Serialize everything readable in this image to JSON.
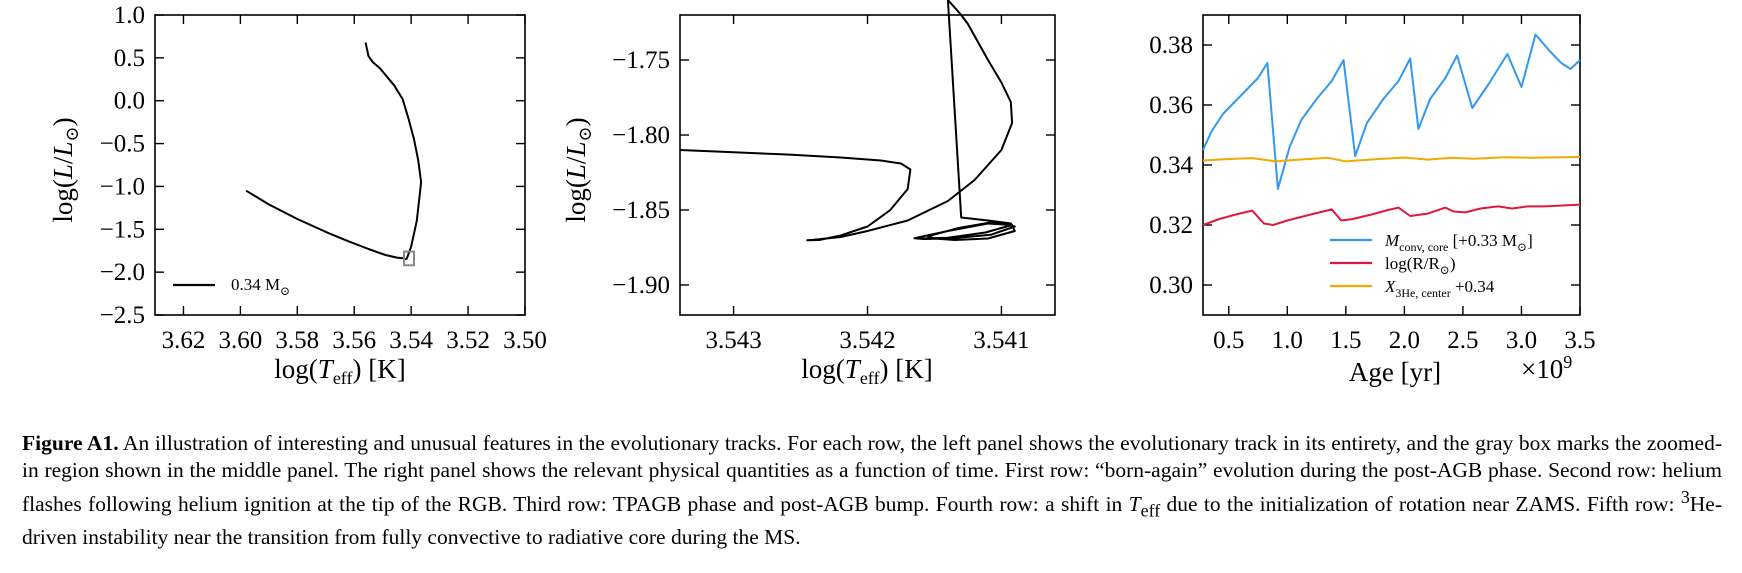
{
  "chart_data": [
    {
      "type": "line",
      "panel": "left",
      "xlabel": "log(Teff) [K]",
      "ylabel": "log(L/L⊙)",
      "xlim": [
        3.63,
        3.5
      ],
      "ylim": [
        -2.5,
        1.0
      ],
      "x_ticks": [
        3.62,
        3.6,
        3.58,
        3.56,
        3.54,
        3.52,
        3.5
      ],
      "y_ticks": [
        1.0,
        0.5,
        0.0,
        -0.5,
        -1.0,
        -1.5,
        -2.0,
        -2.5
      ],
      "x_tick_labels": [
        "3.62",
        "3.60",
        "3.58",
        "3.56",
        "3.54",
        "3.52",
        "3.50"
      ],
      "y_tick_labels": [
        "1.0",
        "0.5",
        "0.0",
        "−0.5",
        "−1.0",
        "−1.5",
        "−2.0",
        "−2.5"
      ],
      "series": [
        {
          "name": "0.34 M⊙",
          "color": "#000000",
          "x": [
            3.598,
            3.59,
            3.58,
            3.57,
            3.562,
            3.555,
            3.549,
            3.545,
            3.5425,
            3.542,
            3.5415,
            3.54,
            3.538,
            3.537,
            3.5365,
            3.5375,
            3.539,
            3.541,
            3.543,
            3.546,
            3.549,
            3.551,
            3.5535,
            3.555,
            3.5555,
            3.556
          ],
          "y": [
            -1.05,
            -1.21,
            -1.38,
            -1.53,
            -1.64,
            -1.73,
            -1.8,
            -1.83,
            -1.84,
            -1.85,
            -1.84,
            -1.7,
            -1.4,
            -1.1,
            -0.95,
            -0.7,
            -0.45,
            -0.2,
            0.02,
            0.18,
            0.3,
            0.38,
            0.45,
            0.52,
            0.6,
            0.68
          ]
        }
      ],
      "gray_box": {
        "x": [
          3.5425,
          3.539
        ],
        "y": [
          -1.92,
          -1.76
        ]
      },
      "legend": "lower-left"
    },
    {
      "type": "line",
      "panel": "middle",
      "xlabel": "log(Teff) [K]",
      "ylabel": "log(L/L⊙)",
      "xlim": [
        3.5434,
        3.5406
      ],
      "ylim": [
        -1.92,
        -1.72
      ],
      "x_ticks": [
        3.543,
        3.542,
        3.541
      ],
      "y_ticks": [
        -1.75,
        -1.8,
        -1.85,
        -1.9
      ],
      "x_tick_labels": [
        "3.543",
        "3.542",
        "3.541"
      ],
      "y_tick_labels": [
        "−1.75",
        "−1.80",
        "−1.85",
        "−1.90"
      ],
      "series": [
        {
          "name": "",
          "color": "#000000",
          "x": [
            3.5434,
            3.543,
            3.5426,
            3.5422,
            3.5419,
            3.54175,
            3.54168,
            3.5417,
            3.54183,
            3.542,
            3.5422,
            3.54236,
            3.54245,
            3.5424,
            3.5422,
            3.542,
            3.5417,
            3.5414,
            3.5412,
            3.541,
            3.54092,
            3.54093,
            3.541,
            3.5411,
            3.54115,
            3.5412,
            3.54125,
            3.5413,
            3.54135,
            3.5414,
            3.5413,
            3.5411,
            3.54093,
            3.5409,
            3.5411,
            3.54135,
            3.5415,
            3.54155,
            3.54132,
            3.54106,
            3.5409,
            3.54108,
            3.54138,
            3.54158,
            3.54165,
            3.5414,
            3.5411,
            3.54092,
            3.54112,
            3.5414,
            3.5416
          ],
          "y": [
            -1.81,
            -1.8115,
            -1.813,
            -1.815,
            -1.817,
            -1.819,
            -1.823,
            -1.836,
            -1.85,
            -1.861,
            -1.867,
            -1.87,
            -1.8702,
            -1.8699,
            -1.868,
            -1.864,
            -1.857,
            -1.844,
            -1.83,
            -1.81,
            -1.792,
            -1.778,
            -1.765,
            -1.75,
            -1.742,
            -1.734,
            -1.726,
            -1.72,
            -1.715,
            -1.71,
            -1.855,
            -1.857,
            -1.859,
            -1.864,
            -1.869,
            -1.87,
            -1.869,
            -1.8675,
            -1.862,
            -1.858,
            -1.861,
            -1.8665,
            -1.869,
            -1.8693,
            -1.8688,
            -1.864,
            -1.859,
            -1.86,
            -1.865,
            -1.8685,
            -1.869
          ]
        }
      ]
    },
    {
      "type": "line",
      "panel": "right",
      "xlabel": "Age [yr]",
      "x_multiplier": "×10⁹",
      "ylabel": "",
      "xlim": [
        0.28,
        3.5
      ],
      "ylim": [
        0.29,
        0.39
      ],
      "x_ticks": [
        0.5,
        1.0,
        1.5,
        2.0,
        2.5,
        3.0,
        3.5
      ],
      "y_ticks": [
        0.3,
        0.32,
        0.34,
        0.36,
        0.38
      ],
      "x_tick_labels": [
        "0.5",
        "1.0",
        "1.5",
        "2.0",
        "2.5",
        "3.0",
        "3.5"
      ],
      "y_tick_labels": [
        "0.30",
        "0.32",
        "0.34",
        "0.36",
        "0.38"
      ],
      "legend": "lower-right",
      "series": [
        {
          "name": "M_conv, core [+0.33 M⊙]",
          "color": "#3399ee",
          "x": [
            0.28,
            0.35,
            0.45,
            0.55,
            0.65,
            0.75,
            0.83,
            0.92,
            1.02,
            1.12,
            1.25,
            1.38,
            1.48,
            1.58,
            1.68,
            1.82,
            1.95,
            2.05,
            2.12,
            2.22,
            2.35,
            2.45,
            2.58,
            2.72,
            2.88,
            3.0,
            3.12,
            3.24,
            3.34,
            3.42,
            3.5
          ],
          "y": [
            0.345,
            0.351,
            0.357,
            0.361,
            0.365,
            0.369,
            0.374,
            0.332,
            0.346,
            0.355,
            0.362,
            0.368,
            0.375,
            0.343,
            0.354,
            0.362,
            0.368,
            0.3755,
            0.352,
            0.362,
            0.369,
            0.3765,
            0.359,
            0.367,
            0.377,
            0.366,
            0.3835,
            0.378,
            0.374,
            0.372,
            0.375
          ]
        },
        {
          "name": "log(R/R⊙)",
          "color": "#dd1a3a",
          "x": [
            0.28,
            0.42,
            0.56,
            0.7,
            0.8,
            0.88,
            1.0,
            1.2,
            1.38,
            1.46,
            1.56,
            1.72,
            1.86,
            1.95,
            2.05,
            2.2,
            2.35,
            2.42,
            2.52,
            2.65,
            2.8,
            2.92,
            3.05,
            3.2,
            3.35,
            3.5
          ],
          "y": [
            0.32,
            0.322,
            0.3235,
            0.3248,
            0.3205,
            0.32,
            0.3215,
            0.3235,
            0.3252,
            0.3215,
            0.322,
            0.3235,
            0.325,
            0.3258,
            0.323,
            0.3238,
            0.3258,
            0.3245,
            0.3242,
            0.3255,
            0.3262,
            0.3255,
            0.3262,
            0.3262,
            0.3265,
            0.3268
          ]
        },
        {
          "name": "X_3He, center + 0.34",
          "color": "#f2a900",
          "x": [
            0.28,
            0.5,
            0.7,
            0.9,
            1.1,
            1.35,
            1.5,
            1.7,
            2.0,
            2.2,
            2.4,
            2.6,
            2.85,
            3.1,
            3.35,
            3.5
          ],
          "y": [
            0.3415,
            0.342,
            0.3423,
            0.3412,
            0.3418,
            0.3424,
            0.3412,
            0.3418,
            0.3425,
            0.3418,
            0.3424,
            0.3421,
            0.3426,
            0.3424,
            0.3426,
            0.3427
          ]
        }
      ]
    }
  ],
  "legend_left": {
    "label": "0.34 M",
    "sun_sub": "⊙"
  },
  "legend_right": {
    "items": [
      {
        "main": "M",
        "sub": "conv, core",
        "rest": " [+0.33 M",
        "rest_sub": "⊙",
        "rest_end": "]"
      },
      {
        "main": "log(R/R",
        "sub": "⊙",
        "rest": ")",
        "rest_sub": "",
        "rest_end": ""
      },
      {
        "main": "X",
        "sub": "3He, center",
        "rest": " +0.34",
        "rest_sub": "",
        "rest_end": ""
      }
    ]
  },
  "axis_text": {
    "log_l_main": "log(",
    "log_l_L": "L",
    "log_l_slash": "/",
    "log_l_sun": "L",
    "log_l_sunsub": "⊙",
    "log_l_close": ")",
    "teff_main": "log(",
    "teff_T": "T",
    "teff_sub": "eff",
    "teff_close": ") [K]",
    "age_label": "Age [yr]",
    "age_mult_base": "×10",
    "age_mult_exp": "9"
  },
  "caption": {
    "label": "Figure A1.",
    "text_part1": " An illustration of interesting and unusual features in the evolutionary tracks. For each row, the left panel shows the evolutionary track in its entirety, and the gray box marks the zoomed-in region shown in the middle panel. The right panel shows the relevant physical quantities as a function of time. First row: “born-again” evolution during the post-AGB phase. Second row: helium flashes following helium ignition at the tip of the RGB. Third row: TPAGB phase and post-AGB bump. Fourth row: a shift in ",
    "teff_T": "T",
    "teff_sub": "eff",
    "text_part2": " due to the initialization of rotation near ZAMS. Fifth row: ",
    "he_sup": "3",
    "text_part3": "He-driven instability near the transition from fully convective to radiative core during the MS."
  }
}
